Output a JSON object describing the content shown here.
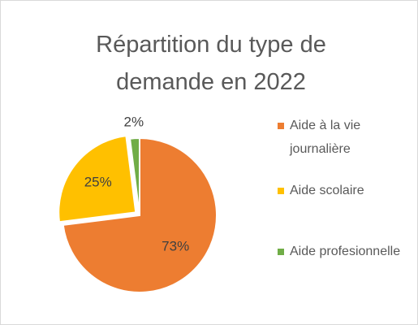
{
  "chart_data": {
    "type": "pie",
    "title": "Répartition du type de demande en 2022",
    "categories": [
      "Aide à la vie journalière",
      "Aide scolaire",
      "Aide profesionnelle"
    ],
    "values": [
      73,
      25,
      2
    ],
    "value_labels": [
      "73%",
      "25%",
      "2%"
    ],
    "colors": [
      "#ed7d31",
      "#ffc000",
      "#70ad47"
    ],
    "legend": "right"
  }
}
